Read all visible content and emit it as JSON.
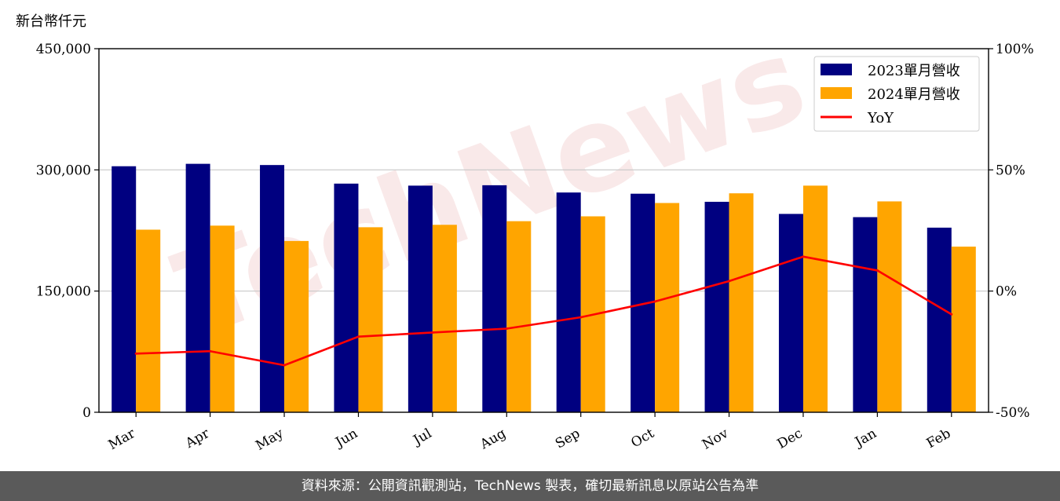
{
  "unit_label": "新台幣仟元",
  "watermark": "TechNews",
  "footer_text": "資料來源：公開資訊觀測站，TechNews 製表，確切最新訊息以原站公告為準",
  "colors": {
    "bar_2023": "#000080",
    "bar_2024": "#ffa500",
    "yoy": "#ff0000",
    "footer_bg": "#5a5a5a"
  },
  "chart_data": {
    "type": "bar",
    "categories": [
      "Mar",
      "Apr",
      "May",
      "Jun",
      "Jul",
      "Aug",
      "Sep",
      "Oct",
      "Nov",
      "Dec",
      "Jan",
      "Feb"
    ],
    "series": [
      {
        "name": "2023單月營收",
        "axis": "left",
        "values": [
          304500,
          307500,
          306000,
          283000,
          280500,
          281000,
          272000,
          270500,
          260500,
          245500,
          241500,
          228500
        ]
      },
      {
        "name": "2024單月營收",
        "axis": "left",
        "values": [
          226000,
          231000,
          212000,
          229000,
          232000,
          236500,
          242500,
          259000,
          271000,
          280500,
          261000,
          205000
        ]
      },
      {
        "name": "YoY",
        "type": "line",
        "axis": "right",
        "values": [
          -25.8,
          -24.8,
          -30.6,
          -18.8,
          -17.1,
          -15.5,
          -10.8,
          -4.3,
          4.1,
          14.2,
          8.5,
          -9.6
        ]
      }
    ],
    "ylim": [
      0,
      450000
    ],
    "y2lim": [
      -50,
      100
    ],
    "yticks": [
      "0",
      "150,000",
      "300,000",
      "450,000"
    ],
    "y2ticks": [
      "-50%",
      "0%",
      "50%",
      "100%"
    ],
    "grid": "horizontal",
    "legend_position": "top-right"
  }
}
